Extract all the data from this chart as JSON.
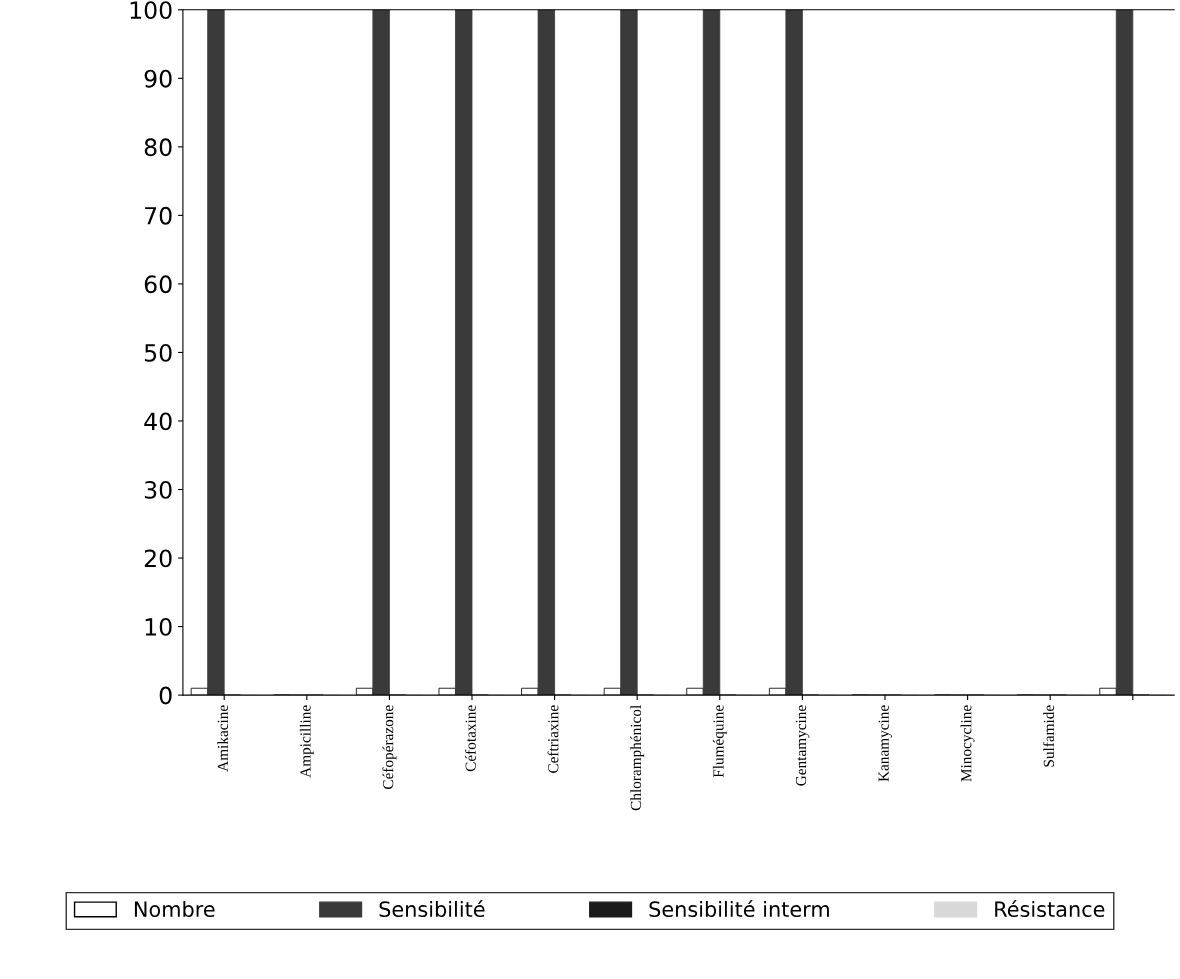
{
  "chart_data": {
    "type": "bar",
    "categories": [
      "Amikacine",
      "Ampicilline",
      "Céfopérazone",
      "Céfotaxine",
      "Ceftriaxine",
      "Chloramphénicol",
      "Fluméquine",
      "Gentamycine",
      "Kanamycine",
      "Minocycline",
      "Sulfamide",
      null
    ],
    "series": [
      {
        "name": "Nombre",
        "color": "#ffffff",
        "values": [
          1,
          0,
          1,
          1,
          1,
          1,
          1,
          1,
          0,
          0,
          0,
          1
        ]
      },
      {
        "name": "Sensibilité",
        "color": "#3a3a3a",
        "values": [
          100,
          0,
          100,
          100,
          100,
          100,
          100,
          100,
          0,
          0,
          0,
          100
        ]
      },
      {
        "name": "Sensibilité interm",
        "color": "#1a1a1a",
        "values": [
          0,
          0,
          0,
          0,
          0,
          0,
          0,
          0,
          0,
          0,
          0,
          0
        ]
      },
      {
        "name": "Résistance",
        "color": "#d8d8d8",
        "values": [
          0,
          0,
          0,
          0,
          0,
          0,
          0,
          0,
          0,
          0,
          0,
          0
        ]
      }
    ],
    "ylim": [
      0,
      100
    ],
    "yticks": [
      0,
      10,
      20,
      30,
      40,
      50,
      60,
      70,
      80,
      90,
      100
    ],
    "grid": false,
    "legend": "bottom"
  }
}
